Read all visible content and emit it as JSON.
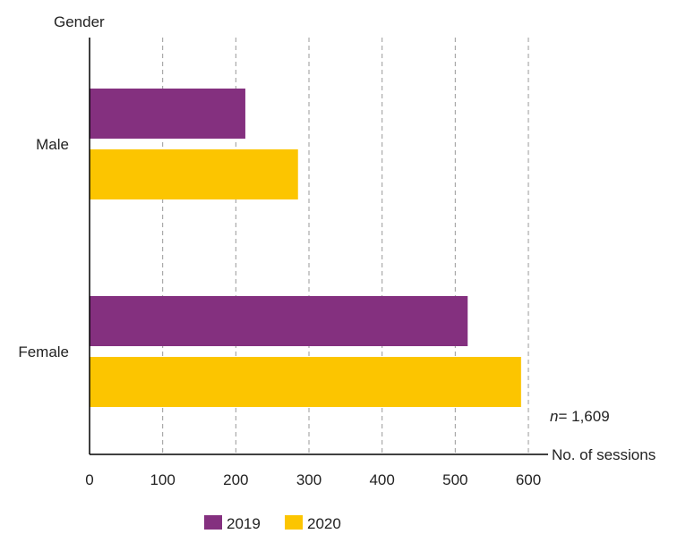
{
  "chart_data": {
    "type": "bar",
    "orientation": "horizontal",
    "categories": [
      "Male",
      "Female"
    ],
    "series": [
      {
        "name": "2019",
        "values": [
          213,
          517
        ],
        "color": "#84307f"
      },
      {
        "name": "2020",
        "values": [
          285,
          590
        ],
        "color": "#fcc500"
      }
    ],
    "title": "",
    "xlabel": "No. of sessions",
    "ylabel": "Gender",
    "xlim": [
      0,
      600
    ],
    "xticks": [
      0,
      100,
      200,
      300,
      400,
      500,
      600
    ],
    "grid": "vertical dashed",
    "legend": "bottom",
    "annotation": {
      "n_label": "n",
      "n_value": "= 1,609"
    }
  }
}
